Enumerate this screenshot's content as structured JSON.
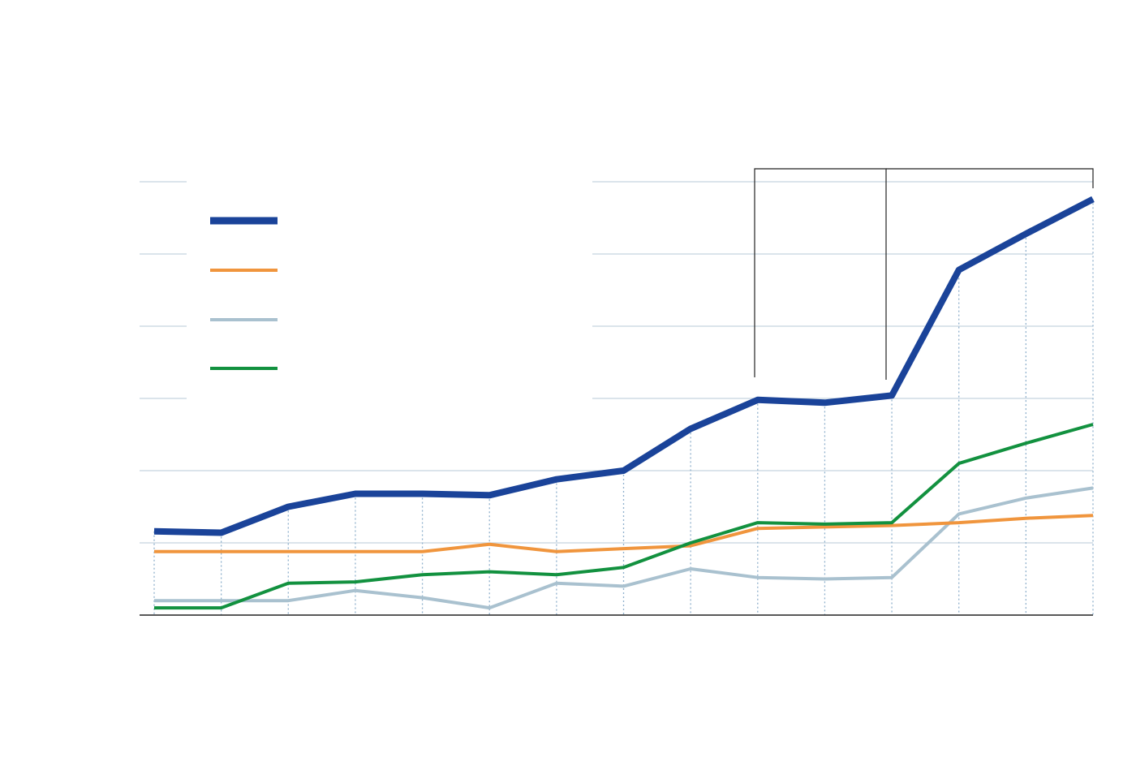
{
  "chart_data": {
    "type": "line",
    "title": "",
    "xlabel": "",
    "ylabel": "",
    "x": [
      1,
      2,
      3,
      4,
      5,
      6,
      7,
      8,
      9,
      10,
      11,
      12,
      13,
      14,
      15
    ],
    "ylim": [
      0,
      300
    ],
    "grid": true,
    "legend": "top-left",
    "series": [
      {
        "color": "#1a4399",
        "values": [
          58,
          57,
          75,
          84,
          84,
          83,
          94,
          100,
          129,
          149,
          147,
          152,
          239,
          264,
          288
        ]
      },
      {
        "color": "#f0953d",
        "values": [
          44,
          44,
          44,
          44,
          44,
          49,
          44,
          46,
          48,
          60,
          61,
          62,
          64,
          67,
          69
        ]
      },
      {
        "color": "#a9c1cf",
        "values": [
          10,
          10,
          10,
          17,
          12,
          5,
          22,
          20,
          32,
          26,
          25,
          26,
          70,
          81,
          88
        ]
      },
      {
        "color": "#12913f",
        "values": [
          5,
          5,
          22,
          23,
          28,
          30,
          28,
          33,
          50,
          64,
          63,
          64,
          105,
          119,
          132
        ]
      }
    ]
  }
}
